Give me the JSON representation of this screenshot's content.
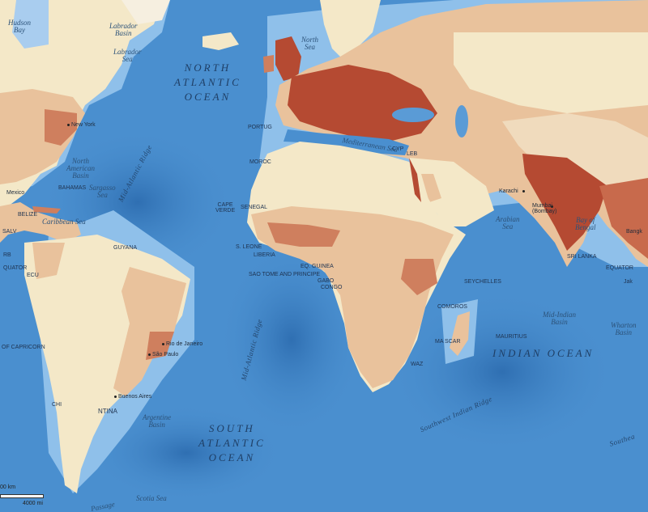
{
  "colors": {
    "ocean_deep": "#3b7dc0",
    "ocean": "#4a8fcf",
    "ocean_shallow": "#8fc0ea",
    "land_empty": "#f4e8c8",
    "land_low": "#e9c29c",
    "land_mid": "#cf7f5e",
    "land_high": "#b54a32"
  },
  "oceans": {
    "north_atlantic_1": "NORTH",
    "north_atlantic_2": "ATLANTIC",
    "north_atlantic_3": "OCEAN",
    "south_atlantic_1": "SOUTH",
    "south_atlantic_2": "ATLANTIC",
    "south_atlantic_3": "OCEAN",
    "indian": "INDIAN OCEAN"
  },
  "seas": {
    "hudson_1": "Hudson",
    "hudson_2": "Bay",
    "labrador_basin_1": "Labrador",
    "labrador_basin_2": "Basin",
    "labrador_sea_1": "Labrador",
    "labrador_sea_2": "Sea",
    "north_sea_1": "North",
    "north_sea_2": "Sea",
    "mediterranean": "Mediterranean Sea",
    "sargasso_1": "Sargasso",
    "sargasso_2": "Sea",
    "caribbean": "Caribbean Sea",
    "arabian_1": "Arabian",
    "arabian_2": "Sea",
    "bengal_1": "Bay of",
    "bengal_2": "Bengal",
    "scotia": "Scotia Sea",
    "passage": "Passage"
  },
  "basins": {
    "north_american_1": "North",
    "north_american_2": "American",
    "north_american_3": "Basin",
    "argentine_1": "Argentine",
    "argentine_2": "Basin",
    "mid_indian_1": "Mid-Indian",
    "mid_indian_2": "Basin",
    "wharton_1": "Wharton",
    "wharton_2": "Basin"
  },
  "ridges": {
    "mid_atlantic_north": "Mid-Atlantic Ridge",
    "mid_atlantic_south": "Mid-Atlantic Ridge",
    "southwest_indian": "Southwest Indian Ridge",
    "southeast": "Southea"
  },
  "places": {
    "new_york": "New York",
    "portugal": "PORTUG",
    "morocco": "MOROC",
    "cape_verde_1": "CAPE",
    "cape_verde_2": "VERDE",
    "senegal": "SENEGAL",
    "sierra_leone": "S. LEONE",
    "liberia": "LIBERIA",
    "eq_guinea": "EQ. GUINEA",
    "sao_tome": "SAO TOME AND PRINCIPE",
    "gabon": "GABO",
    "congo": "CONGO",
    "cyprus": "CYP",
    "lebanon": "LEB",
    "bahamas": "BAHAMAS",
    "belize": "BELIZE",
    "guyana": "GUYANA",
    "ecuador": "ECU",
    "mexico": "Mexico",
    "salvador": "SALV",
    "karachi": "Karachi",
    "mumbai_1": "Mumbai",
    "mumbai_2": "(Bombay)",
    "sri_lanka": "SRI LANKA",
    "bangkok": "Bangk",
    "equator_east": "EQUATOR",
    "equator_west": "QUATOR",
    "seychelles": "SEYCHELLES",
    "comoros": "COMOROS",
    "mauritius": "MAURITIUS",
    "madagascar": "MA   SCAR",
    "swaziland": "WAZ",
    "rio": "Rio de Janeiro",
    "sao_paulo": "São Paulo",
    "buenos_aires": "Buenos Aires",
    "argentina": "NTINA",
    "chile": "CHI",
    "capricorn": "OF CAPRICORN",
    "jakarta": "Jak",
    "rb": "RB"
  },
  "scale": {
    "km_label": "00 km",
    "mi_label": "4000 mi"
  }
}
